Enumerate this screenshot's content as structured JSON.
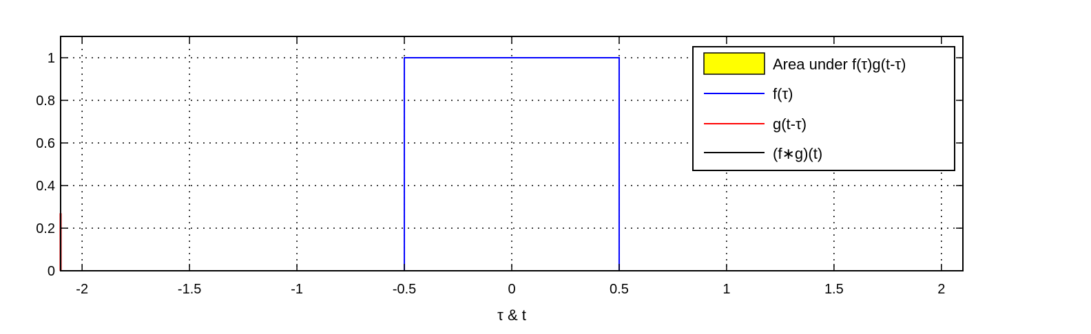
{
  "chart_data": {
    "type": "line",
    "title": "",
    "xlabel": "τ & t",
    "ylabel": "",
    "xlim": [
      -2.1,
      2.1
    ],
    "ylim": [
      0,
      1.1
    ],
    "grid": true,
    "legend_position": "top-right",
    "xticks": [
      -2,
      -1.5,
      -1,
      -0.5,
      0,
      0.5,
      1,
      1.5,
      2
    ],
    "xtick_labels": [
      "-2",
      "-1.5",
      "-1",
      "-0.5",
      "0",
      "0.5",
      "1",
      "1.5",
      "2"
    ],
    "yticks": [
      0,
      0.2,
      0.4,
      0.6,
      0.8,
      1
    ],
    "ytick_labels": [
      "0",
      "0.2",
      "0.4",
      "0.6",
      "0.8",
      "1"
    ],
    "series": [
      {
        "name": "Area under f(τ)g(t-τ)",
        "kind": "area",
        "color": "#ffff00",
        "x": [],
        "y": []
      },
      {
        "name": "f(τ)",
        "kind": "line",
        "color": "#0000ff",
        "x": [
          -2.1,
          -0.5,
          -0.5,
          0.5,
          0.5,
          2.1
        ],
        "y": [
          0,
          0,
          1,
          1,
          0,
          0
        ]
      },
      {
        "name": "g(t-τ)",
        "kind": "line",
        "color": "#ff0000",
        "x": [
          -2.1,
          -2.1
        ],
        "y": [
          0,
          0.27
        ]
      },
      {
        "name": "(f∗g)(t)",
        "kind": "line",
        "color": "#000000",
        "x": [],
        "y": []
      }
    ]
  }
}
